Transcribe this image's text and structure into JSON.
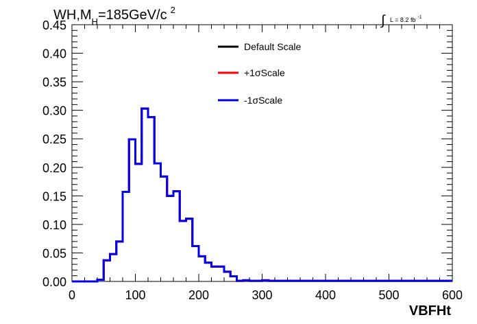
{
  "title": {
    "prefix": "WH,M",
    "sub": "H",
    "main": "=185GeV/c",
    "sup": "2"
  },
  "lumi": {
    "integral": "∫",
    "text": "L = 8.2 fb",
    "sup": "-1"
  },
  "chart_data": {
    "type": "line",
    "style": "step-histogram",
    "xlabel": "VBFHt",
    "ylabel": "",
    "xlim": [
      0,
      600
    ],
    "ylim": [
      0,
      0.45
    ],
    "xticks": [
      0,
      100,
      200,
      300,
      400,
      500,
      600
    ],
    "yticks": [
      0.0,
      0.05,
      0.1,
      0.15,
      0.2,
      0.25,
      0.3,
      0.35,
      0.4,
      0.45
    ],
    "xtick_labels": [
      "0",
      "100",
      "200",
      "300",
      "400",
      "500",
      "600"
    ],
    "ytick_labels": [
      "0.00",
      "0.05",
      "0.10",
      "0.15",
      "0.20",
      "0.25",
      "0.30",
      "0.35",
      "0.40",
      "0.45"
    ],
    "bin_edges": [
      0,
      10,
      20,
      30,
      40,
      50,
      60,
      70,
      80,
      90,
      100,
      110,
      120,
      130,
      140,
      150,
      160,
      170,
      180,
      190,
      200,
      210,
      220,
      230,
      240,
      250,
      260,
      270,
      280,
      290,
      300,
      310,
      320,
      330,
      340,
      350,
      360,
      370,
      380,
      390,
      400,
      410,
      420,
      430,
      440,
      450,
      460,
      470,
      480,
      490,
      500,
      510,
      520,
      530,
      540,
      550,
      560,
      570,
      580,
      590,
      600
    ],
    "legend_position": "top-center",
    "series": [
      {
        "name": "Default Scale",
        "color": "#000000",
        "values": [
          0,
          0,
          0,
          0,
          0.003,
          0.037,
          0.048,
          0.07,
          0.157,
          0.249,
          0.206,
          0.303,
          0.288,
          0.207,
          0.184,
          0.15,
          0.158,
          0.106,
          0.11,
          0.062,
          0.044,
          0.033,
          0.026,
          0.026,
          0.017,
          0.009,
          0.001,
          0.002,
          0.001,
          0.001,
          0.002,
          0.001,
          0.001,
          0.001,
          0.001,
          0.001,
          0.001,
          0.001,
          0.001,
          0.001,
          0.001,
          0.001,
          0.001,
          0.001,
          0.001,
          0.001,
          0.001,
          0.001,
          0.001,
          0.001,
          0.001,
          0.001,
          0.001,
          0.001,
          0.001,
          0.001,
          0.001,
          0.001,
          0.001,
          0.001
        ]
      },
      {
        "name": "+1σScale",
        "color": "#ff0000",
        "values": [
          0,
          0,
          0,
          0,
          0.003,
          0.037,
          0.048,
          0.07,
          0.157,
          0.249,
          0.206,
          0.303,
          0.288,
          0.207,
          0.184,
          0.15,
          0.158,
          0.106,
          0.11,
          0.062,
          0.044,
          0.033,
          0.026,
          0.026,
          0.017,
          0.009,
          0.001,
          0.002,
          0.001,
          0.001,
          0.002,
          0.001,
          0.001,
          0.001,
          0.001,
          0.001,
          0.001,
          0.001,
          0.001,
          0.001,
          0.001,
          0.001,
          0.001,
          0.001,
          0.001,
          0.001,
          0.001,
          0.001,
          0.001,
          0.001,
          0.001,
          0.001,
          0.001,
          0.001,
          0.001,
          0.001,
          0.001,
          0.001,
          0.001,
          0.001
        ]
      },
      {
        "name": "-1σScale",
        "color": "#0000ee",
        "values": [
          0,
          0,
          0,
          0,
          0.003,
          0.037,
          0.048,
          0.07,
          0.157,
          0.249,
          0.206,
          0.303,
          0.288,
          0.207,
          0.184,
          0.15,
          0.158,
          0.106,
          0.11,
          0.062,
          0.044,
          0.033,
          0.026,
          0.026,
          0.017,
          0.009,
          0.001,
          0.002,
          0.001,
          0.001,
          0.002,
          0.001,
          0.001,
          0.001,
          0.001,
          0.001,
          0.001,
          0.001,
          0.001,
          0.001,
          0.001,
          0.001,
          0.001,
          0.001,
          0.001,
          0.001,
          0.001,
          0.001,
          0.001,
          0.001,
          0.001,
          0.001,
          0.001,
          0.001,
          0.001,
          0.001,
          0.001,
          0.001,
          0.001,
          0.001
        ]
      }
    ]
  }
}
